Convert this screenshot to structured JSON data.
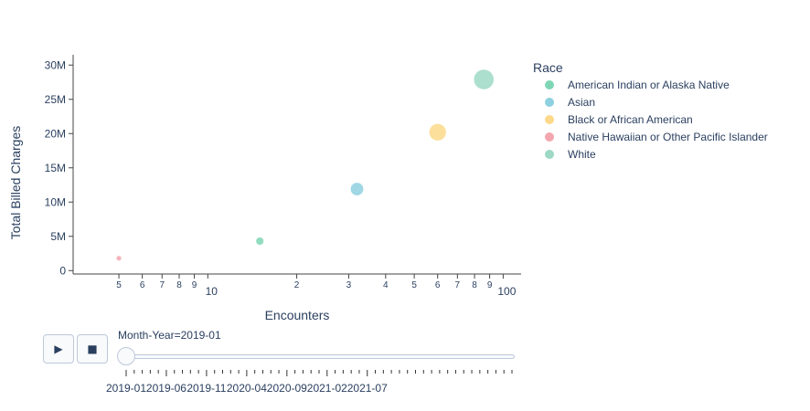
{
  "chart_data": {
    "type": "scatter",
    "title": "",
    "xlabel": "Encounters",
    "ylabel": "Total Billed Charges",
    "xscale": "log",
    "xlim": [
      3.5,
      115
    ],
    "ylim": [
      -0.5,
      31.5
    ],
    "y_unit": "M",
    "y_ticks": [
      0,
      5,
      10,
      15,
      20,
      25,
      30
    ],
    "y_tick_labels": [
      "0",
      "5M",
      "10M",
      "15M",
      "20M",
      "25M",
      "30M"
    ],
    "x_major_ticks": [
      10,
      100
    ],
    "x_major_labels": [
      "10",
      "100"
    ],
    "x_minor_ticks": [
      5,
      6,
      7,
      8,
      9,
      20,
      30,
      40,
      50,
      60,
      70,
      80,
      90
    ],
    "x_minor_labels": [
      "5",
      "6",
      "7",
      "8",
      "9",
      "2",
      "3",
      "4",
      "5",
      "6",
      "7",
      "8",
      "9"
    ],
    "grid": false,
    "legend_title": "Race",
    "legend_position": "top-right",
    "series": [
      {
        "name": "American Indian or Alaska Native",
        "color": "#7fd6b5",
        "x": [
          15
        ],
        "y": [
          4.3
        ]
      },
      {
        "name": "Asian",
        "color": "#8ed0e0",
        "x": [
          32
        ],
        "y": [
          11.9
        ]
      },
      {
        "name": "Black or African American",
        "color": "#fcd98a",
        "x": [
          60
        ],
        "y": [
          20.2
        ]
      },
      {
        "name": "Native Hawaiian or Other Pacific Islander",
        "color": "#f4a6ae",
        "x": [
          5
        ],
        "y": [
          1.8
        ]
      },
      {
        "name": "White",
        "color": "#9dd9c4",
        "x": [
          86
        ],
        "y": [
          27.9
        ]
      }
    ]
  },
  "slider": {
    "current_label": "Month-Year=2019-01",
    "tick_labels": [
      "2019-01",
      "2019-06",
      "2019-11",
      "2020-04",
      "2020-09",
      "2021-02",
      "2021-07"
    ]
  },
  "controls": {
    "play_icon": "play-icon",
    "stop_icon": "stop-icon",
    "play_glyph": "▶",
    "stop_glyph": "■"
  }
}
